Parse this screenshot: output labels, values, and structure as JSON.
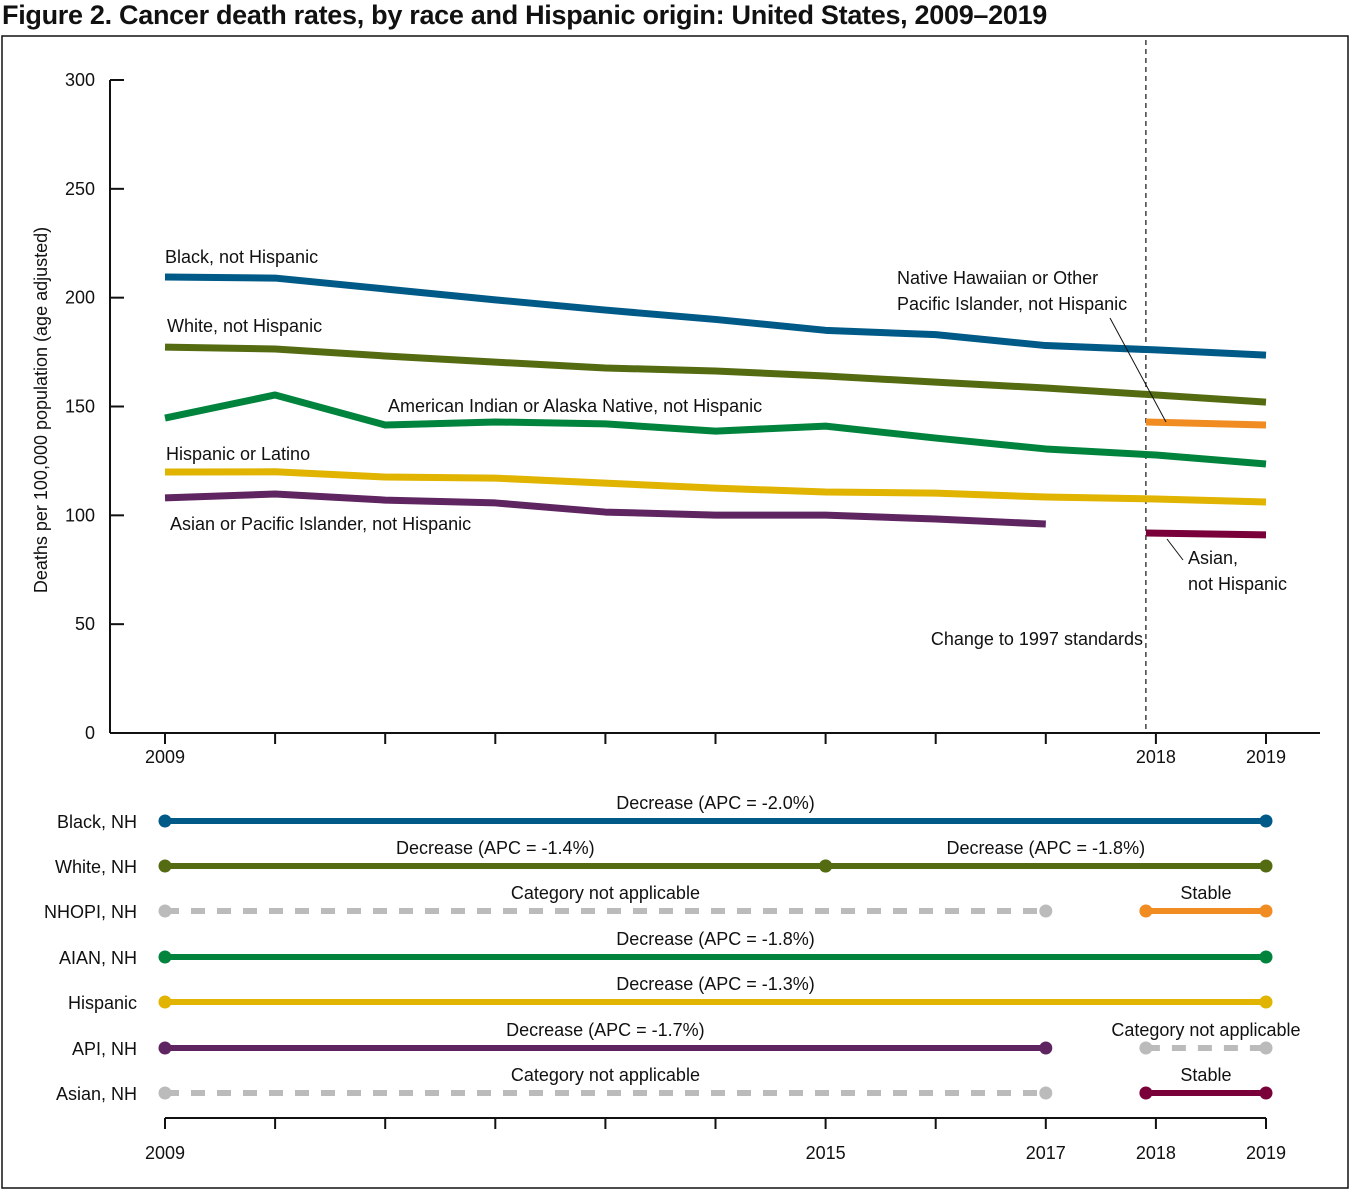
{
  "chart_data": [
    {
      "type": "line",
      "title": "Figure 2. Cancer death rates, by race and Hispanic origin: United States, 2009–2019",
      "ylabel": "Deaths per 100,000 population (age adjusted)",
      "xlabel": "",
      "ylim": [
        0,
        300
      ],
      "xlim": [
        2009,
        2019
      ],
      "yticks": [
        0,
        50,
        100,
        150,
        200,
        250,
        300
      ],
      "xtick_labels": [
        "2009",
        "2018",
        "2019"
      ],
      "grid": false,
      "annotation": "Change to 1997 standards",
      "annotation_x": 2018,
      "series": [
        {
          "name": "Black, not Hispanic",
          "color": "#005a87",
          "x": [
            2009,
            2010,
            2011,
            2012,
            2013,
            2014,
            2015,
            2016,
            2017,
            2018,
            2019
          ],
          "values": [
            209.5,
            209,
            204,
            199,
            194.3,
            190,
            185,
            183,
            178,
            176,
            173.6
          ]
        },
        {
          "name": "White, not Hispanic",
          "color": "#556b12",
          "x": [
            2009,
            2010,
            2011,
            2012,
            2013,
            2014,
            2015,
            2016,
            2017,
            2018,
            2019
          ],
          "values": [
            177.3,
            176.4,
            173.2,
            170.4,
            167.7,
            166.3,
            164,
            161.2,
            158.5,
            155.3,
            152
          ]
        },
        {
          "name": "American Indian or Alaska Native, not Hispanic",
          "color": "#00843d",
          "x": [
            2009,
            2010,
            2011,
            2012,
            2013,
            2014,
            2015,
            2016,
            2017,
            2018,
            2019
          ],
          "values": [
            144.7,
            155.3,
            141.5,
            142.9,
            142,
            138.7,
            141,
            135.5,
            130.5,
            127.7,
            123.6
          ]
        },
        {
          "name": "Hispanic or Latino",
          "color": "#e0b400",
          "x": [
            2009,
            2010,
            2011,
            2012,
            2013,
            2014,
            2015,
            2016,
            2017,
            2018,
            2019
          ],
          "values": [
            119.9,
            120,
            117.6,
            117.1,
            114.8,
            112.5,
            110.7,
            110.2,
            108.4,
            107.5,
            106.1
          ]
        },
        {
          "name": "Asian or Pacific Islander, not Hispanic",
          "color": "#5e2560",
          "x": [
            2009,
            2010,
            2011,
            2012,
            2013,
            2014,
            2015,
            2016,
            2017
          ],
          "values": [
            108,
            109.8,
            107,
            105.7,
            101.5,
            100.1,
            100.1,
            98.3,
            96
          ]
        },
        {
          "name": "Native Hawaiian or Other Pacific Islander, not Hispanic",
          "color": "#f08c21",
          "x": [
            2018,
            2019
          ],
          "values": [
            142.9,
            141.5
          ]
        },
        {
          "name": "Asian, not Hispanic",
          "color": "#7a0039",
          "x": [
            2018,
            2019
          ],
          "values": [
            91.9,
            91
          ]
        }
      ]
    },
    {
      "type": "trend_segments",
      "xtick_labels": [
        "2009",
        "2015",
        "2017",
        "2018",
        "2019"
      ],
      "na_color": "#bbbbbb",
      "rows": [
        {
          "label": "Black, NH",
          "color": "#005a87",
          "segments": [
            {
              "from": 2009,
              "to": 2019,
              "text": "Decrease (APC = -2.0%)",
              "applicable": true
            }
          ]
        },
        {
          "label": "White, NH",
          "color": "#556b12",
          "segments": [
            {
              "from": 2009,
              "to": 2015,
              "text": "Decrease (APC = -1.4%)",
              "applicable": true
            },
            {
              "from": 2015,
              "to": 2019,
              "text": "Decrease (APC = -1.8%)",
              "applicable": true
            }
          ]
        },
        {
          "label": "NHOPI, NH",
          "color": "#f08c21",
          "segments": [
            {
              "from": 2009,
              "to": 2017,
              "text": "Category not applicable",
              "applicable": false
            },
            {
              "from": 2018,
              "to": 2019,
              "text": "Stable",
              "applicable": true
            }
          ]
        },
        {
          "label": "AIAN, NH",
          "color": "#00843d",
          "segments": [
            {
              "from": 2009,
              "to": 2019,
              "text": "Decrease (APC = -1.8%)",
              "applicable": true
            }
          ]
        },
        {
          "label": "Hispanic",
          "color": "#e0b400",
          "segments": [
            {
              "from": 2009,
              "to": 2019,
              "text": "Decrease (APC = -1.3%)",
              "applicable": true
            }
          ]
        },
        {
          "label": "API, NH",
          "color": "#5e2560",
          "segments": [
            {
              "from": 2009,
              "to": 2017,
              "text": "Decrease (APC = -1.7%)",
              "applicable": true
            },
            {
              "from": 2018,
              "to": 2019,
              "text": "Category not applicable",
              "applicable": false
            }
          ]
        },
        {
          "label": "Asian, NH",
          "color": "#7a0039",
          "segments": [
            {
              "from": 2009,
              "to": 2017,
              "text": "Category not applicable",
              "applicable": false
            },
            {
              "from": 2018,
              "to": 2019,
              "text": "Stable",
              "applicable": true
            }
          ]
        }
      ]
    }
  ]
}
